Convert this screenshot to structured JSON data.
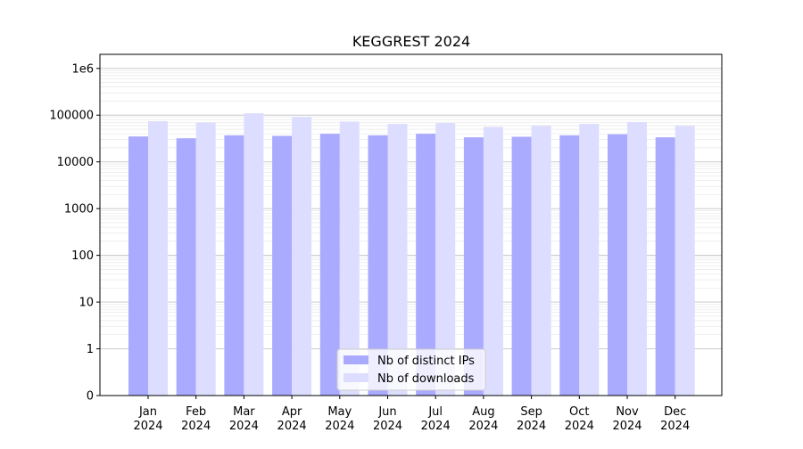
{
  "chart_data": {
    "type": "bar",
    "title": "KEGGREST 2024",
    "xlabel": "",
    "ylabel": "",
    "y_scale": "symlog",
    "ylim": [
      0,
      2000000
    ],
    "grid": true,
    "categories": [
      [
        "Jan",
        "2024"
      ],
      [
        "Feb",
        "2024"
      ],
      [
        "Mar",
        "2024"
      ],
      [
        "Apr",
        "2024"
      ],
      [
        "May",
        "2024"
      ],
      [
        "Jun",
        "2024"
      ],
      [
        "Jul",
        "2024"
      ],
      [
        "Aug",
        "2024"
      ],
      [
        "Sep",
        "2024"
      ],
      [
        "Oct",
        "2024"
      ],
      [
        "Nov",
        "2024"
      ],
      [
        "Dec",
        "2024"
      ]
    ],
    "y_ticks": [
      {
        "value": 0,
        "label": "0"
      },
      {
        "value": 1,
        "label": "1"
      },
      {
        "value": 10,
        "label": "10"
      },
      {
        "value": 100,
        "label": "100"
      },
      {
        "value": 1000,
        "label": "1000"
      },
      {
        "value": 10000,
        "label": "10000"
      },
      {
        "value": 100000,
        "label": "100000"
      },
      {
        "value": 1000000,
        "label": "1e6"
      }
    ],
    "series": [
      {
        "name": "Nb of distinct IPs",
        "color": "#aaaaff",
        "values": [
          35000,
          32000,
          37000,
          36000,
          40000,
          37000,
          40000,
          33500,
          34500,
          37000,
          39000,
          33500
        ]
      },
      {
        "name": "Nb of downloads",
        "color": "#ddddff",
        "values": [
          74000,
          69000,
          110000,
          92000,
          73000,
          65000,
          68000,
          56000,
          59000,
          65000,
          71000,
          59000
        ]
      }
    ],
    "legend": "lower-center"
  }
}
